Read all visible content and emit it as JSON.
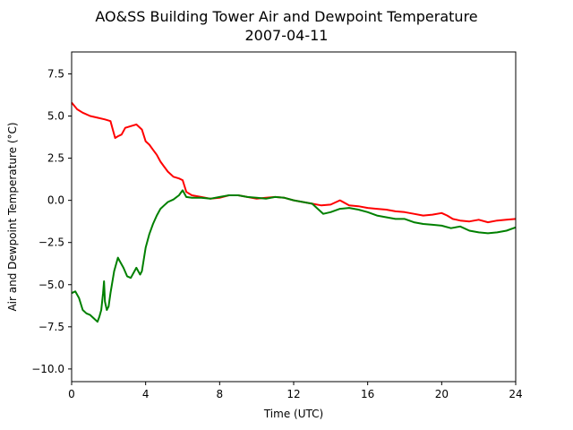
{
  "chart_data": {
    "type": "line",
    "title": "AO&SS Building Tower Air and Dewpoint Temperature",
    "subtitle": "2007-04-11",
    "xlabel": "Time (UTC)",
    "ylabel": "Air and Dewpoint Temperature (°C)",
    "xlim": [
      0,
      24
    ],
    "ylim": [
      -10.75,
      8.8
    ],
    "xticks": [
      0,
      4,
      8,
      12,
      16,
      20,
      24
    ],
    "xtick_labels": [
      "0",
      "4",
      "8",
      "12",
      "16",
      "20",
      "24"
    ],
    "yticks": [
      -10.0,
      -7.5,
      -5.0,
      -2.5,
      0.0,
      2.5,
      5.0,
      7.5
    ],
    "ytick_labels": [
      "−10.0",
      "−7.5",
      "−5.0",
      "−2.5",
      "0.0",
      "2.5",
      "5.0",
      "7.5"
    ],
    "grid": false,
    "legend": "none",
    "series": [
      {
        "color": "#ff0000",
        "x": [
          0,
          0.3,
          0.6,
          1.0,
          1.4,
          1.8,
          2.1,
          2.25,
          2.35,
          2.5,
          2.7,
          2.9,
          3.2,
          3.5,
          3.8,
          4.0,
          4.2,
          4.4,
          4.6,
          4.8,
          5.0,
          5.2,
          5.5,
          5.8,
          6.0,
          6.2,
          6.5,
          7.0,
          7.5,
          8.0,
          8.5,
          9.0,
          9.5,
          10.0,
          10.5,
          11.0,
          11.5,
          12.0,
          12.5,
          13.0,
          13.5,
          14.0,
          14.5,
          15.0,
          15.5,
          16.0,
          16.5,
          17.0,
          17.5,
          18.0,
          18.5,
          19.0,
          19.5,
          20.0,
          20.3,
          20.6,
          21.0,
          21.5,
          22.0,
          22.5,
          23.0,
          23.5,
          24.0
        ],
        "y": [
          5.8,
          5.4,
          5.2,
          5.0,
          4.9,
          4.8,
          4.7,
          4.1,
          3.7,
          3.8,
          3.9,
          4.3,
          4.4,
          4.5,
          4.2,
          3.5,
          3.3,
          3.0,
          2.7,
          2.3,
          2.0,
          1.7,
          1.4,
          1.3,
          1.2,
          0.5,
          0.3,
          0.2,
          0.1,
          0.15,
          0.3,
          0.3,
          0.2,
          0.1,
          0.15,
          0.2,
          0.15,
          0.0,
          -0.1,
          -0.2,
          -0.3,
          -0.25,
          0.0,
          -0.3,
          -0.35,
          -0.45,
          -0.5,
          -0.55,
          -0.65,
          -0.7,
          -0.8,
          -0.9,
          -0.85,
          -0.75,
          -0.9,
          -1.1,
          -1.2,
          -1.25,
          -1.15,
          -1.3,
          -1.2,
          -1.15,
          -1.1
        ]
      },
      {
        "color": "#008000",
        "x": [
          0,
          0.2,
          0.4,
          0.6,
          0.8,
          1.0,
          1.2,
          1.4,
          1.5,
          1.6,
          1.7,
          1.75,
          1.8,
          1.9,
          2.0,
          2.1,
          2.3,
          2.5,
          2.6,
          2.8,
          3.0,
          3.2,
          3.5,
          3.7,
          3.8,
          4.0,
          4.2,
          4.4,
          4.6,
          4.8,
          5.0,
          5.2,
          5.5,
          5.8,
          6.0,
          6.2,
          6.5,
          7.0,
          7.5,
          8.0,
          8.5,
          9.0,
          9.5,
          10.0,
          10.5,
          11.0,
          11.5,
          12.0,
          12.5,
          13.0,
          13.3,
          13.6,
          14.0,
          14.5,
          15.0,
          15.5,
          16.0,
          16.5,
          17.0,
          17.5,
          18.0,
          18.5,
          19.0,
          19.5,
          20.0,
          20.5,
          21.0,
          21.5,
          22.0,
          22.5,
          23.0,
          23.5,
          24.0
        ],
        "y": [
          -5.5,
          -5.4,
          -5.8,
          -6.5,
          -6.7,
          -6.8,
          -7.0,
          -7.2,
          -6.9,
          -6.5,
          -5.5,
          -4.8,
          -6.0,
          -6.5,
          -6.3,
          -5.5,
          -4.2,
          -3.4,
          -3.6,
          -4.0,
          -4.5,
          -4.6,
          -4.0,
          -4.4,
          -4.2,
          -2.8,
          -2.0,
          -1.4,
          -0.9,
          -0.5,
          -0.3,
          -0.1,
          0.05,
          0.3,
          0.6,
          0.2,
          0.15,
          0.15,
          0.1,
          0.2,
          0.3,
          0.3,
          0.2,
          0.15,
          0.1,
          0.2,
          0.15,
          0.0,
          -0.1,
          -0.2,
          -0.5,
          -0.8,
          -0.7,
          -0.5,
          -0.45,
          -0.55,
          -0.7,
          -0.9,
          -1.0,
          -1.1,
          -1.1,
          -1.3,
          -1.4,
          -1.45,
          -1.5,
          -1.65,
          -1.55,
          -1.8,
          -1.9,
          -1.95,
          -1.9,
          -1.8,
          -1.6
        ]
      }
    ]
  }
}
